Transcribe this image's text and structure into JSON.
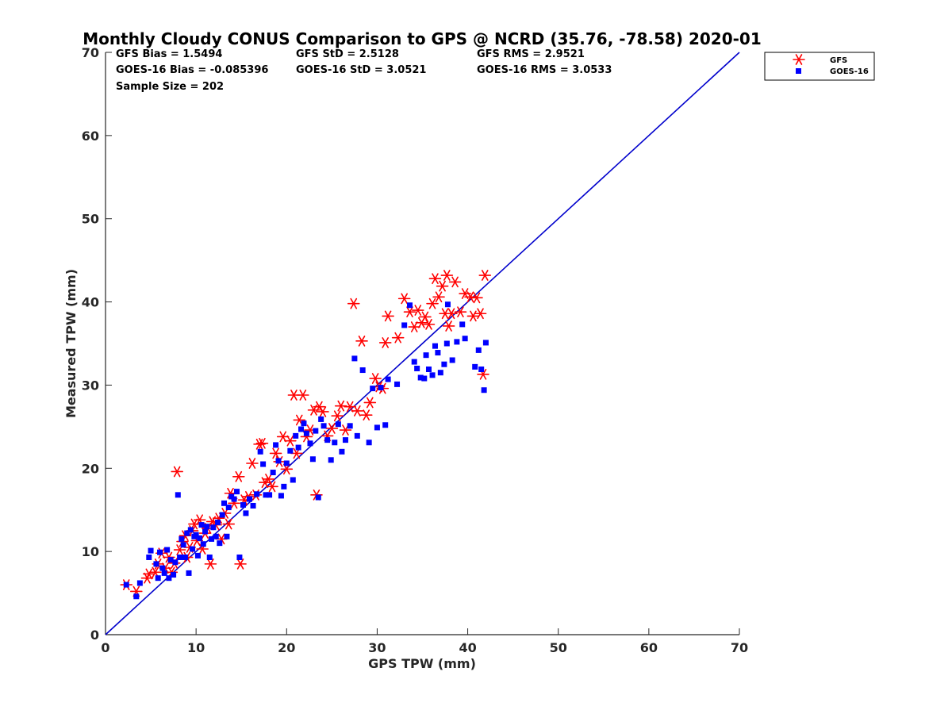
{
  "chart_data": {
    "type": "scatter",
    "title": "Monthly Cloudy CONUS Comparison to GPS @ NCRD (35.76, -78.58) 2020-01",
    "xlabel": "GPS TPW (mm)",
    "ylabel": "Measured TPW (mm)",
    "xlim": [
      0,
      70
    ],
    "ylim": [
      0,
      70
    ],
    "xticks": [
      "0",
      "10",
      "20",
      "30",
      "40",
      "50",
      "60",
      "70"
    ],
    "yticks": [
      "0",
      "10",
      "20",
      "30",
      "40",
      "50",
      "60",
      "70"
    ],
    "legend_position": "top-right (outside axes)",
    "stats": {
      "gfs_bias": "GFS Bias = 1.5494",
      "gfs_std": "GFS StD = 2.5128",
      "gfs_rms": "GFS RMS = 2.9521",
      "goes_bias": "GOES-16 Bias = -0.085396",
      "goes_std": "GOES-16 StD = 3.0521",
      "goes_rms": "GOES-16 RMS = 3.0533",
      "sample_size": "Sample Size = 202"
    },
    "reference_line": {
      "label": "1:1 line",
      "x": [
        0,
        70
      ],
      "y": [
        0,
        70
      ],
      "color": "#0000cc"
    },
    "series": [
      {
        "name": "GFS",
        "marker": "asterisk",
        "color": "#ff0000",
        "points": [
          [
            2.3,
            6.0
          ],
          [
            3.4,
            5.2
          ],
          [
            4.6,
            6.8
          ],
          [
            4.8,
            7.3
          ],
          [
            5.5,
            7.5
          ],
          [
            5.8,
            8.5
          ],
          [
            6.2,
            9.8
          ],
          [
            6.6,
            8.0
          ],
          [
            7.0,
            9.3
          ],
          [
            7.3,
            7.5
          ],
          [
            7.6,
            8.6
          ],
          [
            7.9,
            19.6
          ],
          [
            8.2,
            10.2
          ],
          [
            8.5,
            11.2
          ],
          [
            8.8,
            11.9
          ],
          [
            9.0,
            9.3
          ],
          [
            9.3,
            10.5
          ],
          [
            9.6,
            12.5
          ],
          [
            9.8,
            13.3
          ],
          [
            10.1,
            11.3
          ],
          [
            10.4,
            13.8
          ],
          [
            10.7,
            10.3
          ],
          [
            11.0,
            12.2
          ],
          [
            11.3,
            12.8
          ],
          [
            11.6,
            8.5
          ],
          [
            11.8,
            13.6
          ],
          [
            12.2,
            13.2
          ],
          [
            12.5,
            14.0
          ],
          [
            12.8,
            11.5
          ],
          [
            13.2,
            14.6
          ],
          [
            13.6,
            13.3
          ],
          [
            13.8,
            17.0
          ],
          [
            14.2,
            15.8
          ],
          [
            14.7,
            19.0
          ],
          [
            14.9,
            8.5
          ],
          [
            15.3,
            16.2
          ],
          [
            15.8,
            16.6
          ],
          [
            16.2,
            20.6
          ],
          [
            16.6,
            16.8
          ],
          [
            17.0,
            22.9
          ],
          [
            17.3,
            23.0
          ],
          [
            17.6,
            18.3
          ],
          [
            18.0,
            18.7
          ],
          [
            18.4,
            17.8
          ],
          [
            18.8,
            21.8
          ],
          [
            19.2,
            20.8
          ],
          [
            19.6,
            23.8
          ],
          [
            20.0,
            19.9
          ],
          [
            20.4,
            23.3
          ],
          [
            20.8,
            28.8
          ],
          [
            21.1,
            21.8
          ],
          [
            21.4,
            25.8
          ],
          [
            21.8,
            28.8
          ],
          [
            22.2,
            23.8
          ],
          [
            22.6,
            24.6
          ],
          [
            23.0,
            27.0
          ],
          [
            23.3,
            16.8
          ],
          [
            23.6,
            27.4
          ],
          [
            24.0,
            26.8
          ],
          [
            24.5,
            23.9
          ],
          [
            25.0,
            24.8
          ],
          [
            25.6,
            26.3
          ],
          [
            26.0,
            27.5
          ],
          [
            26.5,
            24.6
          ],
          [
            27.0,
            27.4
          ],
          [
            27.4,
            39.8
          ],
          [
            27.8,
            26.9
          ],
          [
            28.3,
            35.3
          ],
          [
            28.8,
            26.4
          ],
          [
            29.2,
            27.9
          ],
          [
            29.8,
            30.8
          ],
          [
            30.2,
            29.8
          ],
          [
            30.6,
            29.6
          ],
          [
            30.9,
            35.1
          ],
          [
            31.2,
            38.3
          ],
          [
            32.3,
            35.7
          ],
          [
            33.0,
            40.4
          ],
          [
            33.6,
            38.8
          ],
          [
            34.1,
            37.0
          ],
          [
            34.5,
            39.0
          ],
          [
            34.9,
            37.5
          ],
          [
            35.3,
            38.2
          ],
          [
            35.7,
            37.3
          ],
          [
            36.1,
            39.8
          ],
          [
            36.4,
            42.8
          ],
          [
            36.8,
            40.6
          ],
          [
            37.2,
            41.9
          ],
          [
            37.5,
            38.6
          ],
          [
            37.7,
            43.2
          ],
          [
            37.9,
            37.1
          ],
          [
            38.2,
            38.6
          ],
          [
            38.6,
            42.4
          ],
          [
            39.2,
            38.8
          ],
          [
            39.7,
            41.0
          ],
          [
            40.3,
            40.6
          ],
          [
            40.6,
            38.3
          ],
          [
            41.0,
            40.5
          ],
          [
            41.4,
            38.6
          ],
          [
            41.7,
            31.3
          ],
          [
            41.9,
            43.2
          ]
        ]
      },
      {
        "name": "GOES-16",
        "marker": "square",
        "color": "#0000ff",
        "points": [
          [
            2.3,
            6.0
          ],
          [
            3.4,
            4.6
          ],
          [
            3.8,
            6.2
          ],
          [
            4.8,
            9.3
          ],
          [
            5.0,
            10.1
          ],
          [
            5.6,
            8.5
          ],
          [
            5.8,
            6.8
          ],
          [
            6.0,
            9.9
          ],
          [
            6.3,
            8.0
          ],
          [
            6.5,
            7.4
          ],
          [
            6.8,
            10.2
          ],
          [
            7.0,
            6.8
          ],
          [
            7.2,
            9.0
          ],
          [
            7.5,
            7.2
          ],
          [
            7.7,
            8.7
          ],
          [
            8.0,
            16.8
          ],
          [
            8.2,
            9.3
          ],
          [
            8.4,
            11.5
          ],
          [
            8.6,
            10.8
          ],
          [
            8.8,
            9.3
          ],
          [
            9.0,
            12.2
          ],
          [
            9.2,
            7.4
          ],
          [
            9.4,
            12.6
          ],
          [
            9.6,
            10.3
          ],
          [
            9.8,
            11.8
          ],
          [
            10.0,
            12.0
          ],
          [
            10.2,
            9.5
          ],
          [
            10.4,
            11.6
          ],
          [
            10.6,
            13.2
          ],
          [
            10.8,
            10.9
          ],
          [
            11.0,
            12.4
          ],
          [
            11.2,
            13.0
          ],
          [
            11.5,
            9.3
          ],
          [
            11.7,
            11.5
          ],
          [
            11.9,
            12.9
          ],
          [
            12.2,
            11.8
          ],
          [
            12.4,
            13.5
          ],
          [
            12.6,
            11.0
          ],
          [
            12.9,
            14.4
          ],
          [
            13.1,
            15.8
          ],
          [
            13.4,
            11.8
          ],
          [
            13.6,
            15.3
          ],
          [
            13.9,
            16.6
          ],
          [
            14.2,
            16.3
          ],
          [
            14.5,
            17.2
          ],
          [
            14.8,
            9.3
          ],
          [
            15.2,
            15.6
          ],
          [
            15.5,
            14.6
          ],
          [
            15.9,
            16.3
          ],
          [
            16.3,
            15.5
          ],
          [
            16.7,
            16.9
          ],
          [
            17.1,
            22.0
          ],
          [
            17.4,
            20.5
          ],
          [
            17.7,
            16.8
          ],
          [
            18.1,
            16.8
          ],
          [
            18.5,
            19.5
          ],
          [
            18.8,
            22.8
          ],
          [
            19.1,
            20.9
          ],
          [
            19.4,
            16.7
          ],
          [
            19.7,
            17.8
          ],
          [
            20.0,
            20.6
          ],
          [
            20.4,
            22.1
          ],
          [
            20.7,
            18.6
          ],
          [
            21.0,
            23.9
          ],
          [
            21.3,
            22.5
          ],
          [
            21.6,
            24.7
          ],
          [
            21.9,
            25.4
          ],
          [
            22.2,
            24.2
          ],
          [
            22.6,
            23.0
          ],
          [
            22.9,
            21.1
          ],
          [
            23.2,
            24.5
          ],
          [
            23.5,
            16.5
          ],
          [
            23.8,
            25.9
          ],
          [
            24.1,
            25.1
          ],
          [
            24.5,
            23.4
          ],
          [
            24.9,
            21.0
          ],
          [
            25.3,
            23.1
          ],
          [
            25.7,
            25.3
          ],
          [
            26.1,
            22.0
          ],
          [
            26.5,
            23.4
          ],
          [
            27.0,
            25.1
          ],
          [
            27.5,
            33.2
          ],
          [
            27.8,
            23.9
          ],
          [
            28.4,
            31.8
          ],
          [
            29.1,
            23.1
          ],
          [
            29.5,
            29.6
          ],
          [
            30.0,
            24.9
          ],
          [
            30.4,
            29.7
          ],
          [
            30.9,
            25.2
          ],
          [
            31.2,
            30.7
          ],
          [
            32.2,
            30.1
          ],
          [
            33.0,
            37.2
          ],
          [
            33.6,
            39.6
          ],
          [
            34.1,
            32.8
          ],
          [
            34.4,
            32.0
          ],
          [
            34.8,
            30.9
          ],
          [
            35.2,
            30.8
          ],
          [
            35.4,
            33.6
          ],
          [
            35.7,
            31.9
          ],
          [
            36.1,
            31.2
          ],
          [
            36.4,
            34.7
          ],
          [
            36.7,
            33.9
          ],
          [
            37.0,
            31.5
          ],
          [
            37.4,
            32.5
          ],
          [
            37.7,
            35.0
          ],
          [
            37.8,
            39.7
          ],
          [
            38.3,
            33.0
          ],
          [
            38.8,
            35.2
          ],
          [
            39.4,
            37.3
          ],
          [
            39.7,
            35.6
          ],
          [
            40.8,
            32.2
          ],
          [
            41.2,
            34.2
          ],
          [
            41.5,
            31.9
          ],
          [
            41.8,
            29.4
          ],
          [
            42.0,
            35.1
          ]
        ]
      }
    ]
  }
}
